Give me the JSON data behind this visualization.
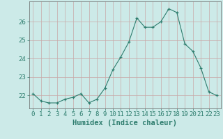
{
  "x": [
    0,
    1,
    2,
    3,
    4,
    5,
    6,
    7,
    8,
    9,
    10,
    11,
    12,
    13,
    14,
    15,
    16,
    17,
    18,
    19,
    20,
    21,
    22,
    23
  ],
  "y": [
    22.1,
    21.7,
    21.6,
    21.6,
    21.8,
    21.9,
    22.1,
    21.6,
    21.8,
    22.4,
    23.4,
    24.1,
    24.9,
    26.2,
    25.7,
    25.7,
    26.0,
    26.7,
    26.5,
    24.8,
    24.4,
    23.5,
    22.2,
    22.0
  ],
  "xlabel": "Humidex (Indice chaleur)",
  "bg_color": "#cceae8",
  "line_color": "#2e7d6e",
  "marker_color": "#2e7d6e",
  "grid_color": "#c8a8a8",
  "tick_color": "#2e7d6e",
  "spine_color": "#666666",
  "ylim": [
    21.3,
    27.1
  ],
  "xlim": [
    -0.5,
    23.5
  ],
  "yticks": [
    22,
    23,
    24,
    25,
    26
  ],
  "xticks": [
    0,
    1,
    2,
    3,
    4,
    5,
    6,
    7,
    8,
    9,
    10,
    11,
    12,
    13,
    14,
    15,
    16,
    17,
    18,
    19,
    20,
    21,
    22,
    23
  ],
  "xlabel_fontsize": 7.5,
  "tick_fontsize": 6.5
}
